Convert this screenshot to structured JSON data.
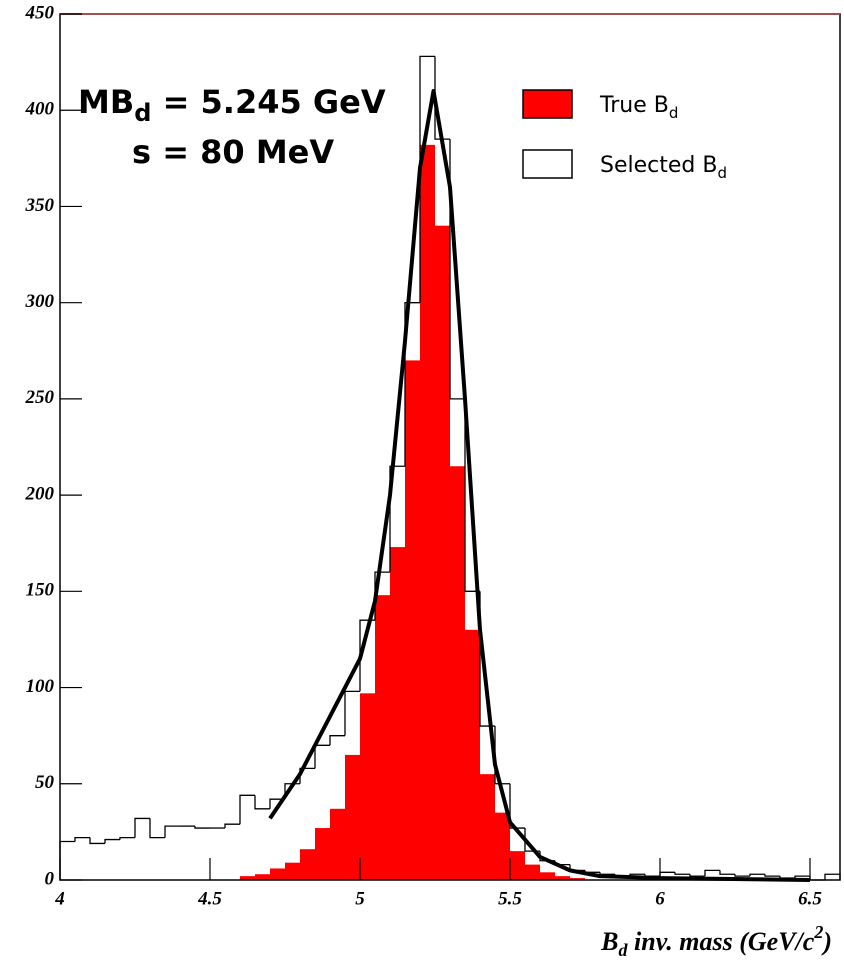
{
  "chart_data": {
    "type": "histogram",
    "bins": [
      4,
      4.05,
      4.1,
      4.15,
      4.2,
      4.25,
      4.3,
      4.35,
      4.4,
      4.45,
      4.5,
      4.55,
      4.6,
      4.65,
      4.7,
      4.75,
      4.8,
      4.85,
      4.9,
      4.95,
      5,
      5.05,
      5.1,
      5.15,
      5.2,
      5.25,
      5.3,
      5.35,
      5.4,
      5.45,
      5.5,
      5.55,
      5.6,
      5.65,
      5.7,
      5.75,
      5.8,
      5.85,
      5.9,
      5.95,
      6,
      6.05,
      6.1,
      6.15,
      6.2,
      6.25,
      6.3,
      6.35,
      6.4,
      6.45,
      6.5,
      6.55,
      6.6
    ],
    "series": [
      {
        "name": "True B",
        "name_subscript": "d",
        "color": "#ff0000",
        "values": [
          0,
          0,
          0,
          0,
          0,
          0,
          0,
          0,
          0,
          0,
          0,
          0,
          2,
          3,
          6,
          9,
          16,
          27,
          37,
          65,
          97,
          148,
          173,
          270,
          382,
          340,
          215,
          130,
          55,
          35,
          15,
          8,
          4,
          2,
          1,
          0,
          0,
          0,
          0,
          0,
          0,
          0,
          0,
          0,
          0,
          0,
          0,
          0,
          0,
          0,
          0,
          0
        ]
      },
      {
        "name": "Selected B",
        "name_subscript": "d",
        "color": "#000000",
        "values": [
          20,
          22,
          19,
          21,
          22,
          32,
          22,
          28,
          28,
          27,
          27,
          29,
          44,
          37,
          42,
          50,
          58,
          70,
          75,
          98,
          135,
          160,
          215,
          300,
          428,
          385,
          250,
          150,
          80,
          50,
          27,
          15,
          10,
          8,
          5,
          4,
          3,
          2,
          3,
          2,
          4,
          3,
          2,
          5,
          3,
          2,
          3,
          2,
          1,
          2,
          0,
          3
        ]
      }
    ],
    "fit": {
      "type": "line",
      "color": "#000000",
      "x": [
        4.7,
        4.8,
        4.9,
        5.0,
        5.05,
        5.1,
        5.15,
        5.2,
        5.245,
        5.3,
        5.35,
        5.4,
        5.45,
        5.5,
        5.6,
        5.7,
        5.8,
        6.0,
        6.5
      ],
      "values": [
        32,
        55,
        85,
        115,
        145,
        200,
        280,
        370,
        410,
        360,
        250,
        130,
        60,
        30,
        12,
        5,
        2,
        1,
        0
      ]
    },
    "annotations": [
      {
        "parts": [
          "MB",
          "d",
          " = 5.245 GeV"
        ]
      },
      {
        "parts": [
          "s = 80 MeV"
        ]
      }
    ],
    "x_label": {
      "parts": [
        "B",
        "d",
        " inv. mass (GeV/c",
        "2",
        ")"
      ]
    },
    "xlim": [
      4,
      6.6
    ],
    "ylim": [
      0,
      450
    ],
    "xticks": [
      4,
      4.5,
      5,
      5.5,
      6,
      6.5
    ],
    "yticks": [
      0,
      50,
      100,
      150,
      200,
      250,
      300,
      350,
      400,
      450
    ]
  }
}
